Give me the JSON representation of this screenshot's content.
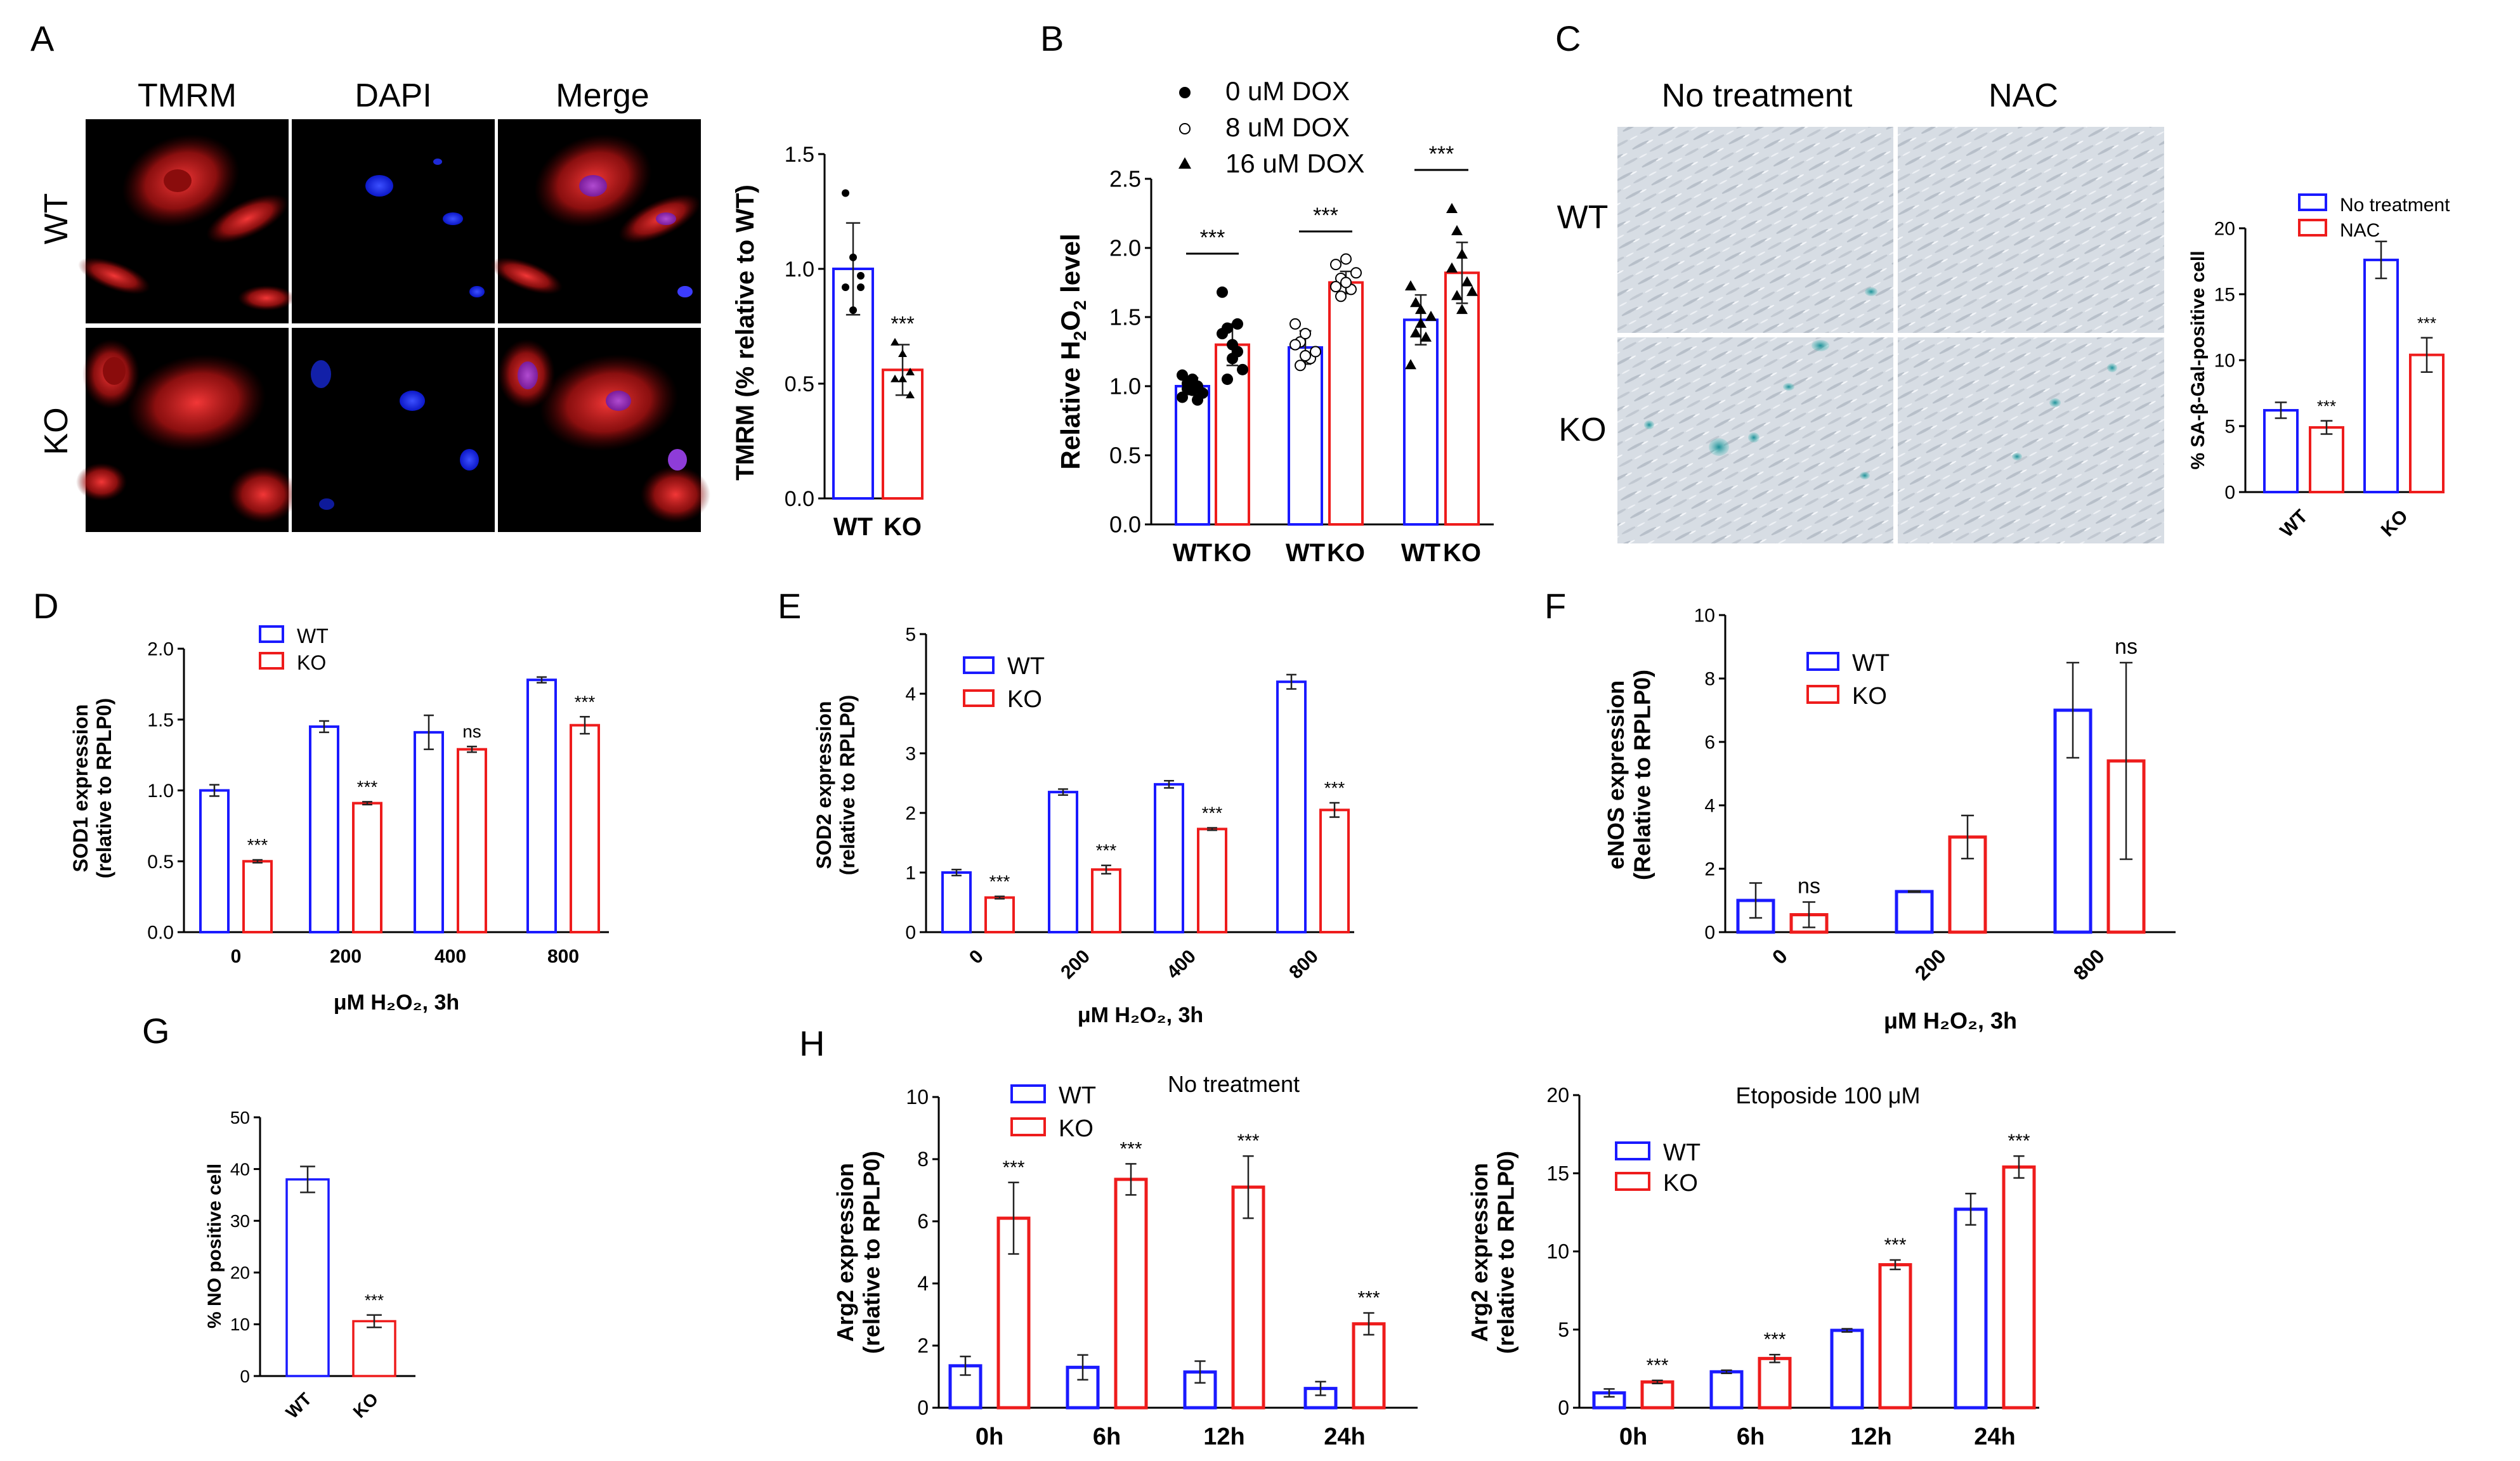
{
  "panel_letters": [
    "A",
    "B",
    "C",
    "D",
    "E",
    "F",
    "G",
    "H"
  ],
  "colors": {
    "wt": "#1a1aff",
    "ko": "#ee1c1c",
    "black": "#000000",
    "tmrm_red": "#d81e1e",
    "dapi_blue": "#1428ff",
    "micro_bg": "#000000",
    "stain_bg": "#d9dee3",
    "stain_blue": "#2aa7a5"
  },
  "panel_a": {
    "columns": [
      "TMRM",
      "DAPI",
      "Merge"
    ],
    "rows": [
      "WT",
      "KO"
    ]
  },
  "panel_c": {
    "columns": [
      "No treatment",
      "NAC"
    ],
    "rows": [
      "WT",
      "KO"
    ]
  },
  "chart_data": [
    {
      "id": "A_tmrm",
      "type": "bar",
      "categories": [
        "WT",
        "KO"
      ],
      "values": [
        1.0,
        0.56
      ],
      "errors": [
        0.2,
        0.11
      ],
      "colors": [
        "wt",
        "ko"
      ],
      "points": [
        [
          1.33,
          1.05,
          0.97,
          0.92,
          0.82,
          0.92
        ],
        [
          0.68,
          0.52,
          0.45,
          0.52,
          0.63,
          0.55
        ]
      ],
      "sig": [
        "",
        "***"
      ],
      "ylabel": "TMRM (% relative to WT)",
      "ylim": [
        0.0,
        1.5
      ],
      "yticks": [
        "0.0",
        "0.5",
        "1.0",
        "1.5"
      ]
    },
    {
      "id": "B_h2o2",
      "type": "bar",
      "categories": [
        "WT",
        "KO",
        "WT",
        "KO",
        "WT",
        "KO"
      ],
      "values": [
        1.0,
        1.3,
        1.28,
        1.75,
        1.48,
        1.82
      ],
      "errors": [
        0.06,
        0.15,
        0.12,
        0.08,
        0.18,
        0.22
      ],
      "colors": [
        "wt",
        "ko",
        "wt",
        "ko",
        "wt",
        "ko"
      ],
      "groups": [
        "0 uM DOX",
        "8 uM DOX",
        "16 uM DOX"
      ],
      "points": [
        [
          0.92,
          0.98,
          1.05,
          1.0,
          0.95,
          1.08,
          1.02,
          0.97,
          0.9
        ],
        [
          1.68,
          1.42,
          1.3,
          1.25,
          1.12,
          1.38,
          1.05,
          1.2,
          1.45
        ],
        [
          1.45,
          1.32,
          1.38,
          1.2,
          1.25,
          1.3,
          1.15,
          1.22
        ],
        [
          1.88,
          1.78,
          1.92,
          1.7,
          1.82,
          1.72,
          1.65,
          1.75
        ],
        [
          1.72,
          1.6,
          1.45,
          1.35,
          1.5,
          1.15,
          1.38,
          1.55
        ],
        [
          2.28,
          2.12,
          1.95,
          1.75,
          1.68,
          1.85,
          1.65,
          1.55
        ]
      ],
      "sig_groups": [
        "***",
        "***",
        "***"
      ],
      "legend": [
        "0 uM DOX",
        "8 uM DOX",
        "16 uM DOX"
      ],
      "legend_markers": [
        "filled-circle",
        "open-circle",
        "triangle"
      ],
      "ylabel_main": "Relative H",
      "ylabel_sub": "2",
      "ylabel_main2": "O",
      "ylabel_sub2": "2",
      "ylabel_end": " level",
      "ylim": [
        0.0,
        2.5
      ],
      "yticks": [
        "0.0",
        "0.5",
        "1.0",
        "1.5",
        "2.0",
        "2.5"
      ]
    },
    {
      "id": "C_sabgal",
      "type": "bar",
      "categories": [
        "WT",
        "KO"
      ],
      "series": [
        {
          "name": "No treatment",
          "color": "wt",
          "values": [
            6.2,
            17.6
          ],
          "errors": [
            0.6,
            1.4
          ]
        },
        {
          "name": "NAC",
          "color": "ko",
          "values": [
            4.9,
            10.4
          ],
          "errors": [
            0.5,
            1.3
          ]
        }
      ],
      "sig": [
        [
          "",
          "***"
        ],
        [
          "",
          "***"
        ]
      ],
      "ylabel": "% SA-β-Gal-positive cell",
      "ylim": [
        0,
        20
      ],
      "yticks": [
        "0",
        "5",
        "10",
        "15",
        "20"
      ]
    },
    {
      "id": "D_sod1",
      "type": "bar",
      "categories": [
        "0",
        "200",
        "400",
        "800"
      ],
      "series": [
        {
          "name": "WT",
          "color": "wt",
          "values": [
            1.0,
            1.45,
            1.41,
            1.78
          ],
          "errors": [
            0.04,
            0.04,
            0.12,
            0.02
          ]
        },
        {
          "name": "KO",
          "color": "ko",
          "values": [
            0.5,
            0.91,
            1.29,
            1.46
          ],
          "errors": [
            0.01,
            0.01,
            0.02,
            0.06
          ]
        }
      ],
      "sig": [
        "***",
        "***",
        "ns",
        "***"
      ],
      "ylabel_1": "SOD1 expression",
      "ylabel_2": "(relative to RPLP0)",
      "xlabel": "μM H₂O₂, 3h",
      "ylim": [
        0.0,
        2.0
      ],
      "yticks": [
        "0.0",
        "0.5",
        "1.0",
        "1.5",
        "2.0"
      ]
    },
    {
      "id": "E_sod2",
      "type": "bar",
      "categories": [
        "0",
        "200",
        "400",
        "800"
      ],
      "series": [
        {
          "name": "WT",
          "color": "wt",
          "values": [
            1.0,
            2.35,
            2.48,
            4.2
          ],
          "errors": [
            0.05,
            0.05,
            0.06,
            0.12
          ]
        },
        {
          "name": "KO",
          "color": "ko",
          "values": [
            0.58,
            1.05,
            1.73,
            2.05
          ],
          "errors": [
            0.02,
            0.07,
            0.02,
            0.12
          ]
        }
      ],
      "sig": [
        "***",
        "***",
        "***",
        "***"
      ],
      "ylabel_1": "SOD2 expression",
      "ylabel_2": "(relative to RPLP0)",
      "xlabel": "μM H₂O₂, 3h",
      "ylim": [
        0,
        5
      ],
      "yticks": [
        "0",
        "1",
        "2",
        "3",
        "4",
        "5"
      ]
    },
    {
      "id": "F_enos",
      "type": "bar",
      "categories": [
        "0",
        "200",
        "800"
      ],
      "series": [
        {
          "name": "WT",
          "color": "wt",
          "values": [
            1.0,
            1.28,
            7.0
          ],
          "errors": [
            0.55,
            0.02,
            1.5
          ]
        },
        {
          "name": "KO",
          "color": "ko",
          "values": [
            0.55,
            3.0,
            5.4
          ],
          "errors": [
            0.4,
            0.68,
            3.1
          ]
        }
      ],
      "sig": [
        "ns",
        "",
        "ns"
      ],
      "ylabel_1": "eNOS expression",
      "ylabel_2": "(Relative to RPLP0)",
      "xlabel": "μM H₂O₂, 3h",
      "ylim": [
        0,
        10
      ],
      "yticks": [
        "0",
        "2",
        "4",
        "6",
        "8",
        "10"
      ]
    },
    {
      "id": "G_no",
      "type": "bar",
      "categories": [
        "WT",
        "KO"
      ],
      "values": [
        38.0,
        10.6
      ],
      "errors": [
        2.5,
        1.2
      ],
      "colors": [
        "wt",
        "ko"
      ],
      "sig": [
        "",
        "***"
      ],
      "ylabel": "% NO positive cell",
      "ylim": [
        0,
        50
      ],
      "yticks": [
        "0",
        "10",
        "20",
        "30",
        "40",
        "50"
      ]
    },
    {
      "id": "H_arg2_nt",
      "type": "bar",
      "title": "No treatment",
      "categories": [
        "0h",
        "6h",
        "12h",
        "24h"
      ],
      "series": [
        {
          "name": "WT",
          "color": "wt",
          "values": [
            1.35,
            1.3,
            1.15,
            0.62
          ],
          "errors": [
            0.3,
            0.4,
            0.35,
            0.22
          ]
        },
        {
          "name": "KO",
          "color": "ko",
          "values": [
            6.1,
            7.35,
            7.1,
            2.7
          ],
          "errors": [
            1.15,
            0.5,
            1.0,
            0.35
          ]
        }
      ],
      "sig": [
        "***",
        "***",
        "***",
        "***"
      ],
      "ylabel_1": "Arg2 expression",
      "ylabel_2": "(relative to RPLP0)",
      "ylim": [
        0,
        10
      ],
      "yticks": [
        "0",
        "2",
        "4",
        "6",
        "8",
        "10"
      ]
    },
    {
      "id": "H_arg2_eto",
      "type": "bar",
      "title": "Etoposide 100 μM",
      "categories": [
        "0h",
        "6h",
        "12h",
        "24h"
      ],
      "series": [
        {
          "name": "WT",
          "color": "wt",
          "values": [
            0.95,
            2.3,
            4.95,
            12.7
          ],
          "errors": [
            0.25,
            0.1,
            0.1,
            1.0
          ]
        },
        {
          "name": "KO",
          "color": "ko",
          "values": [
            1.65,
            3.15,
            9.15,
            15.4
          ],
          "errors": [
            0.1,
            0.25,
            0.3,
            0.7
          ]
        }
      ],
      "sig": [
        "***",
        "***",
        "***",
        "***"
      ],
      "ylabel_1": "Arg2 expression",
      "ylabel_2": "(relative to RPLP0)",
      "ylim": [
        0,
        20
      ],
      "yticks": [
        "0",
        "5",
        "10",
        "15",
        "20"
      ]
    }
  ]
}
